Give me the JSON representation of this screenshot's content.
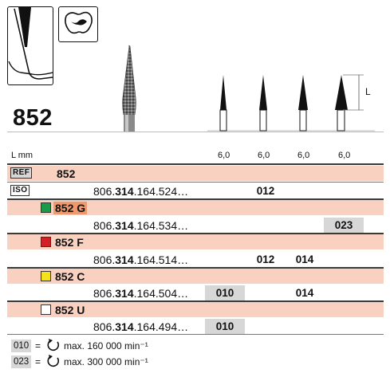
{
  "product": {
    "model": "852"
  },
  "header": {
    "dim_label": "L mm",
    "lengths": [
      "6,0",
      "6,0",
      "6,0",
      "6,0"
    ],
    "dimension_marker": "L"
  },
  "badges": {
    "ref": "REF",
    "iso": "ISO"
  },
  "ref_row": {
    "value": "852"
  },
  "rows": [
    {
      "variant": "852 G",
      "color": "#1a9b4c",
      "variant_bg": "#ee9a6e",
      "code_prefix": "806.",
      "code_bold": "314",
      "code_suffix": ".164.524…",
      "size_label": "012",
      "highlight": false
    },
    {
      "variant": "",
      "color": "",
      "code_prefix": "806.",
      "code_bold": "314",
      "code_suffix": ".164.534…",
      "size_label": "023",
      "highlight": true
    },
    {
      "variant": "852 F",
      "color": "#d0202a",
      "code_prefix": "806.",
      "code_bold": "314",
      "code_suffix": ".164.514…",
      "size_labels": [
        "012",
        "014"
      ]
    },
    {
      "variant": "852 C",
      "color": "#f5e21a",
      "code_prefix": "806.",
      "code_bold": "314",
      "code_suffix": ".164.504…",
      "size_labels": [
        "010",
        "014"
      ]
    },
    {
      "variant": "852 U",
      "color": "#ffffff",
      "code_prefix": "806.",
      "code_bold": "314",
      "code_suffix": ".164.494…",
      "size_labels": [
        "010"
      ]
    }
  ],
  "legend": [
    {
      "code": "010",
      "equals": "=",
      "text": "max. 160 000 min⁻¹"
    },
    {
      "code": "023",
      "equals": "=",
      "text": "max. 300 000 min⁻¹"
    }
  ],
  "icons": [
    "shape-profile-icon",
    "tooth-cavity-icon",
    "rotation-icon"
  ]
}
